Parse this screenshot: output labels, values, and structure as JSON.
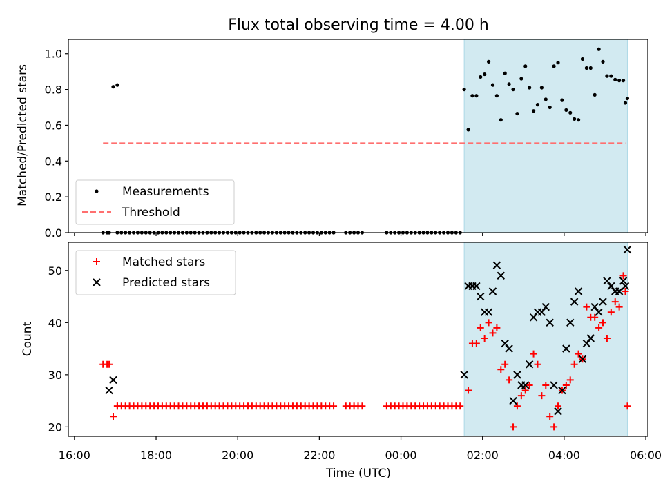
{
  "chart_data": {
    "type": "scatter",
    "title": "Flux total observing time = 4.00 h",
    "xlabel": "Time (UTC)",
    "xlim": [
      -0.15,
      14.05
    ],
    "x_tick_values": [
      0,
      2,
      4,
      6,
      8,
      10,
      12,
      14
    ],
    "x_tick_labels": [
      "16:00",
      "18:00",
      "20:00",
      "22:00",
      "00:00",
      "02:00",
      "04:00",
      "06:00"
    ],
    "x_origin_note": "hours since 16:00 UTC",
    "span": [
      9.55,
      13.55
    ],
    "span_color": "#add8e6",
    "panels": [
      {
        "name": "ratio",
        "ylabel": "Matched/Predicted stars",
        "ylim": [
          0.0,
          1.08
        ],
        "y_ticks": [
          0.0,
          0.2,
          0.4,
          0.6,
          0.8,
          1.0
        ],
        "y_tick_labels": [
          "0.0",
          "0.2",
          "0.4",
          "0.6",
          "0.8",
          "1.0"
        ],
        "legend": {
          "position": "lower-left",
          "entries": [
            "Measurements",
            "Threshold"
          ]
        },
        "series": [
          {
            "name": "Measurements",
            "marker": "dot",
            "color": "#000000",
            "x": [
              0.7,
              0.8,
              0.85,
              0.95,
              1.05,
              9.55,
              9.65,
              9.75,
              9.85,
              9.95,
              10.05,
              10.15,
              10.25,
              10.35,
              10.45,
              10.55,
              10.65,
              10.75,
              10.85,
              10.95,
              11.05,
              11.15,
              11.25,
              11.35,
              11.45,
              11.55,
              11.65,
              11.75,
              11.85,
              11.95,
              12.05,
              12.15,
              12.25,
              12.35,
              12.45,
              12.55,
              12.65,
              12.75,
              12.85,
              12.95,
              13.05,
              13.15,
              13.25,
              13.35,
              13.45,
              13.5,
              13.55
            ],
            "y": [
              0,
              0,
              0,
              0.815,
              0.825,
              0.8,
              0.575,
              0.765,
              0.765,
              0.87,
              0.885,
              0.955,
              0.825,
              0.765,
              0.63,
              0.89,
              0.83,
              0.8,
              0.665,
              0.86,
              0.93,
              0.81,
              0.68,
              0.715,
              0.81,
              0.745,
              0.7,
              0.93,
              0.95,
              0.74,
              0.685,
              0.67,
              0.635,
              0.63,
              0.97,
              0.92,
              0.92,
              0.77,
              1.025,
              0.955,
              0.875,
              0.875,
              0.855,
              0.85,
              0.85,
              0.725,
              0.75
            ]
          },
          {
            "name": "Measurements (zero)",
            "marker": "dot",
            "color": "#000000",
            "zero_runs": [
              [
                1.05,
                6.35
              ],
              [
                6.65,
                7.1
              ],
              [
                7.65,
                9.5
              ]
            ]
          },
          {
            "name": "Threshold",
            "marker": "dashed-line",
            "color": "#ff6f6f",
            "x": [
              0.7,
              13.5
            ],
            "y": [
              0.5,
              0.5
            ]
          }
        ]
      },
      {
        "name": "counts",
        "ylabel": "Count",
        "ylim": [
          18.2,
          55.4
        ],
        "y_ticks": [
          20,
          30,
          40,
          50
        ],
        "y_tick_labels": [
          "20",
          "30",
          "40",
          "50"
        ],
        "legend": {
          "position": "upper-left",
          "entries": [
            "Matched stars",
            "Predicted stars"
          ]
        },
        "series": [
          {
            "name": "Matched stars",
            "marker": "plus",
            "color": "#ff0000",
            "x": [
              0.7,
              0.8,
              0.85,
              0.95,
              1.05,
              9.65,
              9.75,
              9.85,
              9.95,
              10.05,
              10.15,
              10.25,
              10.35,
              10.45,
              10.55,
              10.65,
              10.75,
              10.85,
              10.95,
              11.05,
              11.15,
              11.25,
              11.35,
              11.45,
              11.55,
              11.65,
              11.75,
              11.85,
              11.95,
              12.05,
              12.15,
              12.25,
              12.35,
              12.45,
              12.55,
              12.65,
              12.75,
              12.85,
              12.95,
              13.05,
              13.15,
              13.25,
              13.35,
              13.45,
              13.5,
              13.55
            ],
            "y": [
              32,
              32,
              32,
              22,
              24,
              27,
              36,
              36,
              39,
              37,
              40,
              38,
              39,
              31,
              32,
              29,
              20,
              24,
              26,
              27,
              28,
              34,
              32,
              26,
              28,
              22,
              20,
              24,
              27,
              28,
              29,
              32,
              34,
              33,
              43,
              41,
              41,
              39,
              40,
              37,
              42,
              44,
              43,
              49,
              46,
              24
            ]
          },
          {
            "name": "Matched stars (baseline)",
            "marker": "plus",
            "color": "#ff0000",
            "baseline_value": 24,
            "runs": [
              [
                1.05,
                6.35
              ],
              [
                6.65,
                7.1
              ],
              [
                7.65,
                9.5
              ]
            ]
          },
          {
            "name": "Predicted stars",
            "marker": "x",
            "color": "#000000",
            "x": [
              0.85,
              0.95,
              9.55,
              9.65,
              9.75,
              9.85,
              9.95,
              10.05,
              10.15,
              10.25,
              10.35,
              10.45,
              10.55,
              10.65,
              10.75,
              10.85,
              10.95,
              11.05,
              11.15,
              11.25,
              11.35,
              11.45,
              11.55,
              11.65,
              11.75,
              11.85,
              11.95,
              12.05,
              12.15,
              12.25,
              12.35,
              12.45,
              12.55,
              12.65,
              12.75,
              12.85,
              12.95,
              13.05,
              13.15,
              13.25,
              13.35,
              13.45,
              13.5,
              13.55
            ],
            "y": [
              27,
              29,
              30,
              47,
              47,
              47,
              45,
              42,
              42,
              46,
              51,
              49,
              36,
              35,
              25,
              30,
              28,
              28,
              32,
              41,
              42,
              42,
              43,
              40,
              28,
              23,
              27,
              35,
              40,
              44,
              46,
              33,
              36,
              37,
              43,
              42,
              44,
              48,
              47,
              46,
              46,
              48,
              47,
              54
            ]
          }
        ]
      }
    ]
  }
}
